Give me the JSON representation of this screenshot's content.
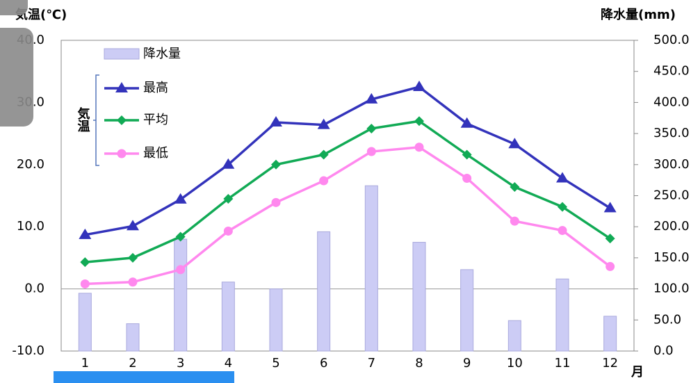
{
  "chart_data": {
    "type": "bar-line",
    "y_title": "気温(℃)",
    "y2_title": "降水量(mm)",
    "x_title": "月",
    "legend_group_label": "気温",
    "categories": [
      "1",
      "2",
      "3",
      "4",
      "5",
      "6",
      "7",
      "8",
      "9",
      "10",
      "11",
      "12"
    ],
    "bar_series": {
      "name": "降水量",
      "color": "#ccccf5",
      "axis": "y2",
      "values": [
        93,
        44,
        180,
        111,
        100,
        192,
        266,
        175,
        131,
        49,
        116,
        56
      ]
    },
    "series": [
      {
        "name": "最高",
        "color": "#3333bb",
        "marker": "triangle",
        "values": [
          8.7,
          10.1,
          14.4,
          20.0,
          26.8,
          26.4,
          30.5,
          32.5,
          26.6,
          23.3,
          17.8,
          13.0
        ]
      },
      {
        "name": "平均",
        "color": "#11aa55",
        "marker": "diamond",
        "values": [
          4.3,
          5.0,
          8.4,
          14.5,
          20.0,
          21.6,
          25.8,
          27.0,
          21.6,
          16.4,
          13.2,
          8.1
        ]
      },
      {
        "name": "最低",
        "color": "#ff88ee",
        "marker": "circle",
        "values": [
          0.8,
          1.1,
          3.1,
          9.3,
          13.9,
          17.4,
          22.1,
          22.8,
          17.8,
          10.9,
          9.4,
          3.6
        ]
      }
    ],
    "ylim": [
      -10,
      40
    ],
    "yticks": [
      {
        "value": -10,
        "label": "-10.0"
      },
      {
        "value": 0,
        "label": "0.0"
      },
      {
        "value": 10,
        "label": "10.0"
      },
      {
        "value": 20,
        "label": "20.0"
      },
      {
        "value": 30,
        "label": "30.0"
      },
      {
        "value": 40,
        "label": "40.0"
      }
    ],
    "y2lim": [
      0,
      500
    ],
    "y2ticks": [
      {
        "value": 0,
        "label": "0.0"
      },
      {
        "value": 50,
        "label": "50.0"
      },
      {
        "value": 100,
        "label": "100.0"
      },
      {
        "value": 150,
        "label": "150.0"
      },
      {
        "value": 200,
        "label": "200.0"
      },
      {
        "value": 250,
        "label": "250.0"
      },
      {
        "value": 300,
        "label": "300.0"
      },
      {
        "value": 350,
        "label": "350.0"
      },
      {
        "value": 400,
        "label": "400.0"
      },
      {
        "value": 450,
        "label": "450.0"
      },
      {
        "value": 500,
        "label": "500.0"
      }
    ]
  }
}
